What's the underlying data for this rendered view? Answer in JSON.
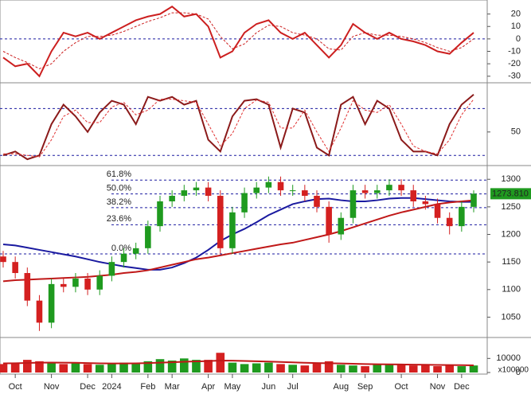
{
  "chart_data": [
    {
      "type": "line",
      "ylim": [
        -34,
        30
      ],
      "yticks": [
        20,
        10,
        0,
        -10,
        -20,
        -30
      ],
      "levels": [
        0
      ],
      "series": [
        {
          "color": "#cc1f1f",
          "style": "solid",
          "values": [
            -15,
            -22,
            -20,
            -30,
            -10,
            5,
            2,
            5,
            0,
            5,
            10,
            15,
            18,
            20,
            26,
            18,
            20,
            10,
            -15,
            -10,
            5,
            12,
            15,
            5,
            0,
            5,
            -5,
            -15,
            -5,
            12,
            5,
            0,
            5,
            0,
            -2,
            -5,
            -10,
            -12,
            -3,
            5
          ]
        },
        {
          "color": "#cc1f1f",
          "style": "dashed",
          "values": [
            -10,
            -15,
            -19,
            -24,
            -20,
            -10,
            -3,
            2,
            2,
            3,
            6,
            10,
            14,
            17,
            21,
            21,
            20,
            16,
            2,
            -8,
            -4,
            5,
            11,
            10,
            5,
            3,
            0,
            -8,
            -9,
            2,
            5,
            3,
            3,
            2,
            0,
            -3,
            -7,
            -10,
            -7,
            0
          ]
        }
      ]
    },
    {
      "type": "line",
      "ylim": [
        9,
        111
      ],
      "yticks": [
        50
      ],
      "levels": [
        20,
        80
      ],
      "series": [
        {
          "color": "#8b1a1a",
          "style": "solid",
          "values": [
            20,
            25,
            15,
            20,
            60,
            85,
            70,
            50,
            75,
            90,
            85,
            60,
            95,
            90,
            95,
            85,
            90,
            40,
            25,
            70,
            90,
            92,
            85,
            30,
            80,
            75,
            30,
            20,
            85,
            95,
            60,
            90,
            80,
            40,
            25,
            25,
            20,
            60,
            85,
            98
          ]
        },
        {
          "color": "#e03030",
          "style": "dashed",
          "values": [
            22,
            22,
            20,
            18,
            40,
            70,
            78,
            62,
            62,
            82,
            88,
            72,
            78,
            92,
            92,
            90,
            88,
            60,
            32,
            48,
            80,
            91,
            88,
            55,
            55,
            78,
            50,
            25,
            55,
            90,
            78,
            75,
            85,
            60,
            32,
            25,
            22,
            40,
            72,
            92
          ]
        }
      ]
    },
    {
      "type": "candlestick",
      "ylim": [
        1016,
        1322
      ],
      "yticks": [
        1300,
        1250,
        1200,
        1150,
        1100,
        1050
      ],
      "up_color": "#1f9a1f",
      "down_color": "#d42020",
      "open": [
        1160,
        1150,
        1130,
        1080,
        1040,
        1110,
        1105,
        1120,
        1100,
        1125,
        1150,
        1165,
        1175,
        1215,
        1260,
        1270,
        1280,
        1285,
        1270,
        1175,
        1240,
        1275,
        1285,
        1295,
        1280,
        1280,
        1270,
        1250,
        1200,
        1230,
        1280,
        1275,
        1280,
        1290,
        1280,
        1260,
        1255,
        1230,
        1215,
        1250
      ],
      "high": [
        1170,
        1160,
        1140,
        1090,
        1120,
        1120,
        1130,
        1130,
        1135,
        1160,
        1175,
        1185,
        1225,
        1270,
        1280,
        1290,
        1295,
        1295,
        1280,
        1250,
        1285,
        1295,
        1305,
        1305,
        1290,
        1290,
        1280,
        1260,
        1240,
        1290,
        1290,
        1290,
        1300,
        1300,
        1290,
        1270,
        1265,
        1240,
        1260,
        1280
      ],
      "low": [
        1140,
        1120,
        1070,
        1025,
        1030,
        1095,
        1095,
        1090,
        1090,
        1115,
        1140,
        1155,
        1165,
        1205,
        1250,
        1260,
        1270,
        1260,
        1165,
        1165,
        1230,
        1265,
        1275,
        1270,
        1270,
        1260,
        1240,
        1185,
        1190,
        1220,
        1265,
        1265,
        1270,
        1270,
        1250,
        1245,
        1220,
        1200,
        1205,
        1240
      ],
      "close": [
        1150,
        1130,
        1080,
        1040,
        1110,
        1105,
        1120,
        1100,
        1125,
        1150,
        1165,
        1175,
        1215,
        1260,
        1270,
        1280,
        1285,
        1270,
        1175,
        1240,
        1275,
        1285,
        1295,
        1280,
        1280,
        1270,
        1250,
        1200,
        1230,
        1280,
        1275,
        1280,
        1290,
        1280,
        1260,
        1255,
        1230,
        1215,
        1250,
        1273.81
      ],
      "series": [
        {
          "color": "#1a1aa0",
          "values": [
            1182,
            1180,
            1176,
            1172,
            1168,
            1164,
            1160,
            1155,
            1150,
            1146,
            1142,
            1139,
            1136,
            1136,
            1140,
            1148,
            1158,
            1172,
            1188,
            1200,
            1210,
            1222,
            1235,
            1245,
            1255,
            1260,
            1264,
            1265,
            1262,
            1260,
            1260,
            1262,
            1265,
            1266,
            1266,
            1264,
            1262,
            1260,
            1259,
            1259
          ]
        },
        {
          "color": "#c01818",
          "values": [
            1115,
            1117,
            1118,
            1119,
            1120,
            1121,
            1122,
            1123,
            1125,
            1127,
            1130,
            1132,
            1135,
            1140,
            1145,
            1150,
            1155,
            1158,
            1162,
            1166,
            1170,
            1174,
            1178,
            1182,
            1185,
            1190,
            1195,
            1200,
            1206,
            1213,
            1220,
            1227,
            1234,
            1240,
            1245,
            1250,
            1255,
            1258,
            1260,
            1262
          ]
        }
      ],
      "fib_levels": [
        {
          "label": "61.8%",
          "value": 1298.5
        },
        {
          "label": "50.0%",
          "value": 1273.5
        },
        {
          "label": "38.2%",
          "value": 1248.5
        },
        {
          "label": "23.6%",
          "value": 1217.6
        },
        {
          "label": "0.0%",
          "value": 1164.7
        }
      ],
      "last_price": {
        "value": 1273.81,
        "label": "1273.810"
      }
    },
    {
      "type": "bar",
      "ylim": [
        0,
        23750
      ],
      "yticks": [
        10000,
        0
      ],
      "unit_label": "x100000",
      "values": [
        6000,
        7000,
        9000,
        8000,
        7000,
        6000,
        6500,
        6000,
        5500,
        6000,
        7000,
        6500,
        8000,
        9500,
        8500,
        10000,
        9000,
        9000,
        14000,
        7000,
        6000,
        6500,
        7000,
        6000,
        5500,
        5000,
        6500,
        8000,
        5500,
        5000,
        4500,
        6000,
        6000,
        5500,
        5000,
        5500,
        4500,
        5000,
        4500,
        5000
      ],
      "ma": {
        "color": "#c01818",
        "values": [
          6500,
          6600,
          6800,
          7000,
          7100,
          7000,
          6900,
          6700,
          6500,
          6400,
          6400,
          6500,
          6700,
          7000,
          7300,
          7600,
          7900,
          8100,
          8500,
          8400,
          8200,
          8000,
          7800,
          7500,
          7200,
          6900,
          6700,
          6600,
          6400,
          6200,
          6000,
          5900,
          5800,
          5700,
          5600,
          5500,
          5400,
          5300,
          5200,
          5100
        ]
      },
      "categories": [
        null,
        "Oct",
        null,
        null,
        "Nov",
        null,
        null,
        "Dec",
        null,
        "2024",
        null,
        null,
        "Feb",
        null,
        "Mar",
        null,
        null,
        "Apr",
        null,
        "May",
        null,
        null,
        "Jun",
        null,
        "Jul",
        null,
        null,
        null,
        "Aug",
        null,
        "Sep",
        null,
        null,
        "Oct",
        null,
        null,
        "Nov",
        null,
        "Dec",
        null
      ]
    }
  ]
}
